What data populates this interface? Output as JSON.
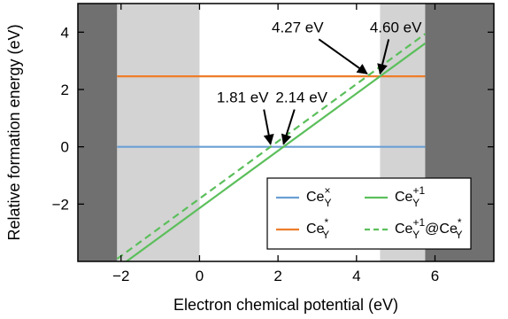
{
  "chart_data": {
    "type": "line",
    "xlabel": "Electron chemical potential (eV)",
    "ylabel": "Relative formation energy (eV)",
    "xlim": [
      -3.1,
      7.5
    ],
    "ylim": [
      -4,
      5
    ],
    "xticks": [
      -2,
      0,
      2,
      4,
      6
    ],
    "yticks": [
      -2,
      0,
      2,
      4
    ],
    "xtick_labels": [
      "−2",
      "0",
      "2",
      "4",
      "6"
    ],
    "ytick_labels": [
      "−2",
      "0",
      "2",
      "4"
    ],
    "shaded_regions": [
      {
        "x": [
          -3.1,
          -2.1
        ],
        "color": "#707070"
      },
      {
        "x": [
          -2.1,
          0
        ],
        "color": "#d3d3d3"
      },
      {
        "x": [
          4.6,
          5.75
        ],
        "color": "#d3d3d3"
      },
      {
        "x": [
          5.75,
          7.5
        ],
        "color": "#707070"
      }
    ],
    "series": [
      {
        "label_main": "Ce",
        "label_sub": "Y",
        "label_sup": "×",
        "color": "#6a9fd4",
        "style": "solid",
        "x": [
          -2.1,
          5.75
        ],
        "y": [
          0,
          0
        ]
      },
      {
        "label_main": "Ce",
        "label_sub": "Y",
        "label_sup": "*",
        "color": "#ee7d2a",
        "style": "solid",
        "x": [
          -2.1,
          5.75
        ],
        "y": [
          2.46,
          2.46
        ]
      },
      {
        "label_main": "Ce",
        "label_sub": "Y",
        "label_sup": "+1",
        "color": "#5bbf5b",
        "style": "solid",
        "x": [
          -2.1,
          5.75
        ],
        "y": [
          -4.24,
          3.61
        ]
      },
      {
        "label_main": "Ce",
        "label_sub": "Y",
        "label_sup": "+1",
        "label_tail_main": "@Ce",
        "label_tail_sub": "Y",
        "label_tail_sup": "*",
        "color": "#5bbf5b",
        "style": "dashed",
        "x": [
          -2.1,
          5.75
        ],
        "y": [
          -3.91,
          3.94
        ]
      }
    ],
    "annotations": [
      {
        "text": "1.81 eV",
        "x": 1.81,
        "y": 0,
        "label_x": 1.1,
        "label_y": 1.55
      },
      {
        "text": "2.14 eV",
        "x": 2.14,
        "y": 0,
        "label_x": 2.6,
        "label_y": 1.55
      },
      {
        "text": "4.27 eV",
        "x": 4.27,
        "y": 2.46,
        "label_x": 2.5,
        "label_y": 4.0
      },
      {
        "text": "4.60 eV",
        "x": 4.6,
        "y": 2.46,
        "label_x": 5.0,
        "label_y": 4.0
      }
    ],
    "legend_position": "lower-right",
    "grid": false
  }
}
